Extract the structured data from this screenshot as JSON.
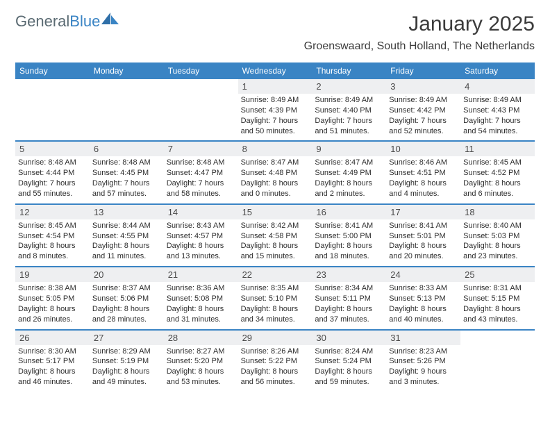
{
  "brand": {
    "part1": "General",
    "part2": "Blue"
  },
  "title": "January 2025",
  "location": "Groenswaard, South Holland, The Netherlands",
  "colors": {
    "accent": "#3a84c4",
    "daynum_bg": "#eeeff1",
    "text": "#333333",
    "logo_gray": "#5a6a72"
  },
  "days_of_week": [
    "Sunday",
    "Monday",
    "Tuesday",
    "Wednesday",
    "Thursday",
    "Friday",
    "Saturday"
  ],
  "weeks": [
    [
      null,
      null,
      null,
      {
        "n": "1",
        "sr": "Sunrise: 8:49 AM",
        "ss": "Sunset: 4:39 PM",
        "d1": "Daylight: 7 hours",
        "d2": "and 50 minutes."
      },
      {
        "n": "2",
        "sr": "Sunrise: 8:49 AM",
        "ss": "Sunset: 4:40 PM",
        "d1": "Daylight: 7 hours",
        "d2": "and 51 minutes."
      },
      {
        "n": "3",
        "sr": "Sunrise: 8:49 AM",
        "ss": "Sunset: 4:42 PM",
        "d1": "Daylight: 7 hours",
        "d2": "and 52 minutes."
      },
      {
        "n": "4",
        "sr": "Sunrise: 8:49 AM",
        "ss": "Sunset: 4:43 PM",
        "d1": "Daylight: 7 hours",
        "d2": "and 54 minutes."
      }
    ],
    [
      {
        "n": "5",
        "sr": "Sunrise: 8:48 AM",
        "ss": "Sunset: 4:44 PM",
        "d1": "Daylight: 7 hours",
        "d2": "and 55 minutes."
      },
      {
        "n": "6",
        "sr": "Sunrise: 8:48 AM",
        "ss": "Sunset: 4:45 PM",
        "d1": "Daylight: 7 hours",
        "d2": "and 57 minutes."
      },
      {
        "n": "7",
        "sr": "Sunrise: 8:48 AM",
        "ss": "Sunset: 4:47 PM",
        "d1": "Daylight: 7 hours",
        "d2": "and 58 minutes."
      },
      {
        "n": "8",
        "sr": "Sunrise: 8:47 AM",
        "ss": "Sunset: 4:48 PM",
        "d1": "Daylight: 8 hours",
        "d2": "and 0 minutes."
      },
      {
        "n": "9",
        "sr": "Sunrise: 8:47 AM",
        "ss": "Sunset: 4:49 PM",
        "d1": "Daylight: 8 hours",
        "d2": "and 2 minutes."
      },
      {
        "n": "10",
        "sr": "Sunrise: 8:46 AM",
        "ss": "Sunset: 4:51 PM",
        "d1": "Daylight: 8 hours",
        "d2": "and 4 minutes."
      },
      {
        "n": "11",
        "sr": "Sunrise: 8:45 AM",
        "ss": "Sunset: 4:52 PM",
        "d1": "Daylight: 8 hours",
        "d2": "and 6 minutes."
      }
    ],
    [
      {
        "n": "12",
        "sr": "Sunrise: 8:45 AM",
        "ss": "Sunset: 4:54 PM",
        "d1": "Daylight: 8 hours",
        "d2": "and 8 minutes."
      },
      {
        "n": "13",
        "sr": "Sunrise: 8:44 AM",
        "ss": "Sunset: 4:55 PM",
        "d1": "Daylight: 8 hours",
        "d2": "and 11 minutes."
      },
      {
        "n": "14",
        "sr": "Sunrise: 8:43 AM",
        "ss": "Sunset: 4:57 PM",
        "d1": "Daylight: 8 hours",
        "d2": "and 13 minutes."
      },
      {
        "n": "15",
        "sr": "Sunrise: 8:42 AM",
        "ss": "Sunset: 4:58 PM",
        "d1": "Daylight: 8 hours",
        "d2": "and 15 minutes."
      },
      {
        "n": "16",
        "sr": "Sunrise: 8:41 AM",
        "ss": "Sunset: 5:00 PM",
        "d1": "Daylight: 8 hours",
        "d2": "and 18 minutes."
      },
      {
        "n": "17",
        "sr": "Sunrise: 8:41 AM",
        "ss": "Sunset: 5:01 PM",
        "d1": "Daylight: 8 hours",
        "d2": "and 20 minutes."
      },
      {
        "n": "18",
        "sr": "Sunrise: 8:40 AM",
        "ss": "Sunset: 5:03 PM",
        "d1": "Daylight: 8 hours",
        "d2": "and 23 minutes."
      }
    ],
    [
      {
        "n": "19",
        "sr": "Sunrise: 8:38 AM",
        "ss": "Sunset: 5:05 PM",
        "d1": "Daylight: 8 hours",
        "d2": "and 26 minutes."
      },
      {
        "n": "20",
        "sr": "Sunrise: 8:37 AM",
        "ss": "Sunset: 5:06 PM",
        "d1": "Daylight: 8 hours",
        "d2": "and 28 minutes."
      },
      {
        "n": "21",
        "sr": "Sunrise: 8:36 AM",
        "ss": "Sunset: 5:08 PM",
        "d1": "Daylight: 8 hours",
        "d2": "and 31 minutes."
      },
      {
        "n": "22",
        "sr": "Sunrise: 8:35 AM",
        "ss": "Sunset: 5:10 PM",
        "d1": "Daylight: 8 hours",
        "d2": "and 34 minutes."
      },
      {
        "n": "23",
        "sr": "Sunrise: 8:34 AM",
        "ss": "Sunset: 5:11 PM",
        "d1": "Daylight: 8 hours",
        "d2": "and 37 minutes."
      },
      {
        "n": "24",
        "sr": "Sunrise: 8:33 AM",
        "ss": "Sunset: 5:13 PM",
        "d1": "Daylight: 8 hours",
        "d2": "and 40 minutes."
      },
      {
        "n": "25",
        "sr": "Sunrise: 8:31 AM",
        "ss": "Sunset: 5:15 PM",
        "d1": "Daylight: 8 hours",
        "d2": "and 43 minutes."
      }
    ],
    [
      {
        "n": "26",
        "sr": "Sunrise: 8:30 AM",
        "ss": "Sunset: 5:17 PM",
        "d1": "Daylight: 8 hours",
        "d2": "and 46 minutes."
      },
      {
        "n": "27",
        "sr": "Sunrise: 8:29 AM",
        "ss": "Sunset: 5:19 PM",
        "d1": "Daylight: 8 hours",
        "d2": "and 49 minutes."
      },
      {
        "n": "28",
        "sr": "Sunrise: 8:27 AM",
        "ss": "Sunset: 5:20 PM",
        "d1": "Daylight: 8 hours",
        "d2": "and 53 minutes."
      },
      {
        "n": "29",
        "sr": "Sunrise: 8:26 AM",
        "ss": "Sunset: 5:22 PM",
        "d1": "Daylight: 8 hours",
        "d2": "and 56 minutes."
      },
      {
        "n": "30",
        "sr": "Sunrise: 8:24 AM",
        "ss": "Sunset: 5:24 PM",
        "d1": "Daylight: 8 hours",
        "d2": "and 59 minutes."
      },
      {
        "n": "31",
        "sr": "Sunrise: 8:23 AM",
        "ss": "Sunset: 5:26 PM",
        "d1": "Daylight: 9 hours",
        "d2": "and 3 minutes."
      },
      null
    ]
  ]
}
